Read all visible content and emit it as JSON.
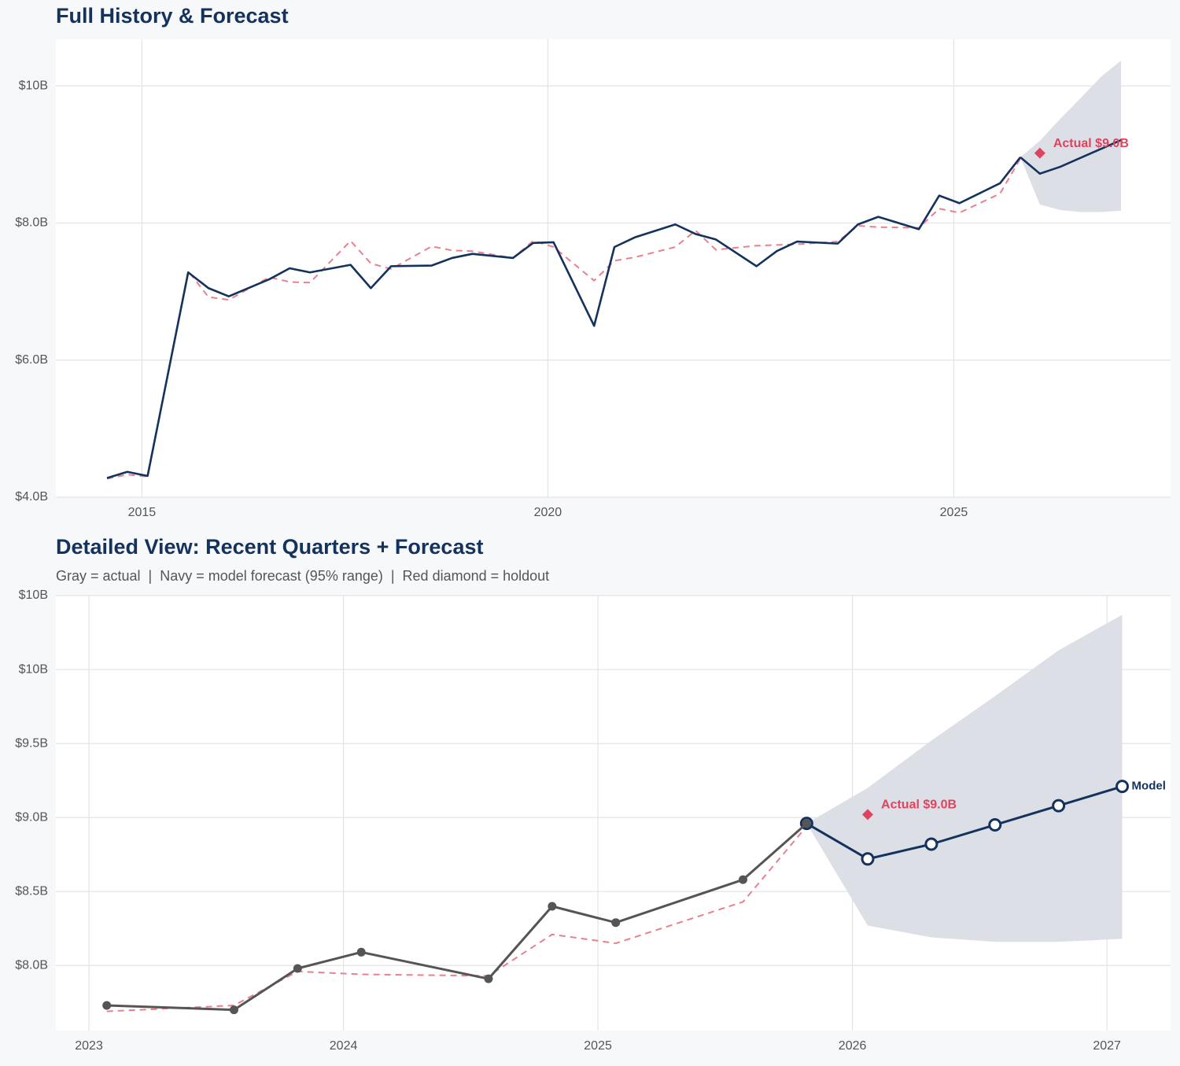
{
  "chart_data": [
    {
      "type": "line",
      "title": "Full History & Forecast",
      "xlim": [
        2013.94,
        2027.67
      ],
      "xticks": [
        2015,
        2020,
        2025
      ],
      "ylim": [
        4.0,
        10.68
      ],
      "yticks": [
        {
          "value": 4,
          "label": "$4.0B"
        },
        {
          "value": 6,
          "label": "$6.0B"
        },
        {
          "value": 8,
          "label": "$8.0B"
        },
        {
          "value": 10,
          "label": "$10B"
        }
      ],
      "grid": true,
      "band": {
        "color": "#dcdfe6",
        "x": [
          2025.82,
          2026.06,
          2026.31,
          2026.56,
          2026.81,
          2027.06
        ],
        "lower": [
          8.96,
          8.27,
          8.19,
          8.16,
          8.16,
          8.18
        ],
        "upper": [
          8.96,
          9.2,
          9.52,
          9.82,
          10.13,
          10.37
        ]
      },
      "series": [
        {
          "color": "#e8808f",
          "style": "dashed",
          "x": [
            2014.57,
            2014.82,
            2015.07,
            2015.57,
            2015.82,
            2016.07,
            2016.57,
            2016.82,
            2017.07,
            2017.57,
            2017.82,
            2018.07,
            2018.57,
            2018.82,
            2019.07,
            2019.57,
            2019.82,
            2020.07,
            2020.57,
            2020.82,
            2021.07,
            2021.57,
            2021.82,
            2022.07,
            2022.57,
            2022.82,
            2023.07,
            2023.57,
            2023.82,
            2024.07,
            2024.57,
            2024.82,
            2025.07,
            2025.57,
            2025.82
          ],
          "values": [
            4.27,
            4.33,
            4.3,
            7.3,
            6.92,
            6.88,
            7.21,
            7.14,
            7.13,
            7.74,
            7.41,
            7.33,
            7.66,
            7.6,
            7.59,
            7.49,
            7.74,
            7.65,
            7.16,
            7.45,
            7.5,
            7.65,
            7.89,
            7.61,
            7.67,
            7.68,
            7.69,
            7.73,
            7.96,
            7.94,
            7.93,
            8.21,
            8.15,
            8.43,
            8.94
          ]
        },
        {
          "color": "#14325c",
          "style": "solid",
          "x": [
            2014.57,
            2014.82,
            2015.07,
            2015.57,
            2015.82,
            2016.07,
            2016.57,
            2016.82,
            2017.07,
            2017.57,
            2017.82,
            2018.07,
            2018.57,
            2018.82,
            2019.07,
            2019.57,
            2019.82,
            2020.07,
            2020.57,
            2020.82,
            2021.07,
            2021.57,
            2021.82,
            2022.07,
            2022.57,
            2022.82,
            2023.07,
            2023.57,
            2023.82,
            2024.07,
            2024.57,
            2024.82,
            2025.07,
            2025.57,
            2025.82
          ],
          "values": [
            4.28,
            4.37,
            4.31,
            7.28,
            7.05,
            6.93,
            7.18,
            7.34,
            7.28,
            7.39,
            7.05,
            7.37,
            7.38,
            7.49,
            7.55,
            7.49,
            7.71,
            7.72,
            6.5,
            7.65,
            7.79,
            7.98,
            7.84,
            7.76,
            7.37,
            7.59,
            7.73,
            7.7,
            7.98,
            8.09,
            7.91,
            8.4,
            8.29,
            8.58,
            8.96
          ]
        },
        {
          "color": "#14325c",
          "style": "solid",
          "x": [
            2025.82,
            2026.06,
            2026.31,
            2026.56,
            2026.81,
            2027.06
          ],
          "values": [
            8.96,
            8.72,
            8.82,
            8.95,
            9.08,
            9.21
          ]
        }
      ],
      "annotations": [
        {
          "x": 2026.06,
          "value": 9.02,
          "label": "Actual $9.0B",
          "color": "#e0435e"
        }
      ]
    },
    {
      "type": "line",
      "title": "Detailed View: Recent Quarters + Forecast",
      "subtitle": "Gray = actual  |  Navy = model forecast (95% range)  |  Red diamond = holdout",
      "xlim": [
        2022.87,
        2027.25
      ],
      "xticks": [
        2023,
        2024,
        2025,
        2026,
        2027
      ],
      "ylim": [
        7.56,
        10.5
      ],
      "yticks": [
        {
          "value": 8,
          "label": "$8.0B"
        },
        {
          "value": 8.5,
          "label": "$8.5B"
        },
        {
          "value": 9,
          "label": "$9.0B"
        },
        {
          "value": 9.5,
          "label": "$9.5B"
        },
        {
          "value": 10,
          "label": "$10B"
        },
        {
          "value": 10.5,
          "label": "$10B"
        }
      ],
      "grid": true,
      "band": {
        "color": "#dcdfe6",
        "x": [
          2025.82,
          2026.06,
          2026.31,
          2026.56,
          2026.81,
          2027.06
        ],
        "lower": [
          8.96,
          8.27,
          8.19,
          8.16,
          8.16,
          8.18
        ],
        "upper": [
          8.96,
          9.2,
          9.52,
          9.82,
          10.13,
          10.37
        ]
      },
      "series": [
        {
          "color": "#e8808f",
          "style": "dashed",
          "x": [
            2023.07,
            2023.57,
            2023.82,
            2024.07,
            2024.57,
            2024.82,
            2025.07,
            2025.57,
            2025.82
          ],
          "values": [
            7.69,
            7.73,
            7.96,
            7.94,
            7.93,
            8.21,
            8.15,
            8.43,
            8.94
          ]
        },
        {
          "color": "#14325c",
          "style": "solid",
          "markers": "open",
          "label": "Model",
          "x": [
            2025.82,
            2026.06,
            2026.31,
            2026.56,
            2026.81,
            2027.06
          ],
          "values": [
            8.96,
            8.72,
            8.82,
            8.95,
            9.08,
            9.21
          ]
        },
        {
          "color": "#555555",
          "style": "solid",
          "markers": "filled",
          "x": [
            2023.07,
            2023.57,
            2023.82,
            2024.07,
            2024.57,
            2024.82,
            2025.07,
            2025.57,
            2025.82
          ],
          "values": [
            7.73,
            7.7,
            7.98,
            8.09,
            7.91,
            8.4,
            8.29,
            8.58,
            8.96
          ]
        }
      ],
      "annotations": [
        {
          "x": 2026.06,
          "value": 9.02,
          "label": "Actual $9.0B",
          "color": "#e0435e"
        }
      ]
    }
  ]
}
